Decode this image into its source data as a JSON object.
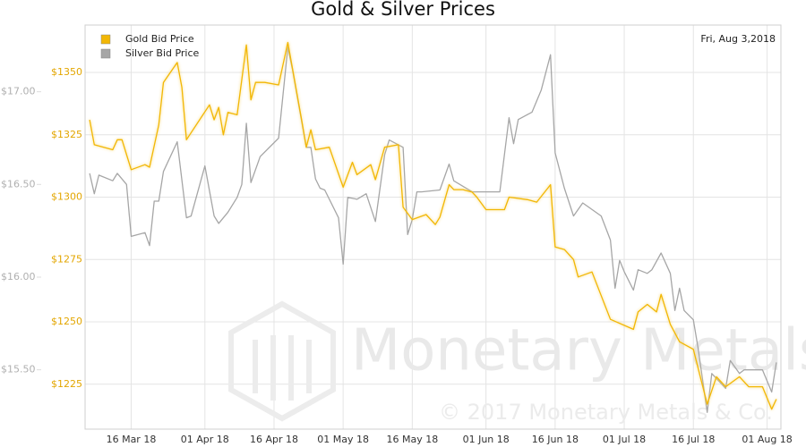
{
  "chart_data": {
    "type": "line",
    "title": "Gold & Silver Prices",
    "annotation": "Fri, Aug 3,2018",
    "watermark": "Monetary Metals",
    "copyright": "© 2017 Monetary Metals & Co.",
    "legend": "upper left",
    "grid": true,
    "xlim": [
      "2018-03-06",
      "2018-08-04"
    ],
    "xticks": [
      {
        "value": "2018-03-16",
        "label": "16 Mar 18"
      },
      {
        "value": "2018-04-01",
        "label": "01 Apr 18"
      },
      {
        "value": "2018-04-16",
        "label": "16 Apr 18"
      },
      {
        "value": "2018-05-01",
        "label": "01 May 18"
      },
      {
        "value": "2018-05-16",
        "label": "16 May 18"
      },
      {
        "value": "2018-06-01",
        "label": "01 Jun 18"
      },
      {
        "value": "2018-06-16",
        "label": "16 Jun 18"
      },
      {
        "value": "2018-07-01",
        "label": "01 Jul 18"
      },
      {
        "value": "2018-07-16",
        "label": "16 Jul 18"
      },
      {
        "value": "2018-08-01",
        "label": "01 Aug 18"
      }
    ],
    "ylim": [
      1207,
      1369
    ],
    "yticks": [
      {
        "value": 1225,
        "label": "$1225"
      },
      {
        "value": 1250,
        "label": "$1250"
      },
      {
        "value": 1275,
        "label": "$1275"
      },
      {
        "value": 1300,
        "label": "$1300"
      },
      {
        "value": 1325,
        "label": "$1325"
      },
      {
        "value": 1350,
        "label": "$1350"
      }
    ],
    "y2lim": [
      15.18,
      17.36
    ],
    "y2ticks": [
      {
        "value": 15.5,
        "label": "$15.50"
      },
      {
        "value": 16,
        "label": "$16.00"
      },
      {
        "value": 16.5,
        "label": "$16.50"
      },
      {
        "value": 17,
        "label": "$17.00"
      }
    ],
    "series": [
      {
        "name": "Gold Bid Price",
        "color": "#f2b705",
        "x": [
          "2018-03-07",
          "2018-03-08",
          "2018-03-12",
          "2018-03-13",
          "2018-03-14",
          "2018-03-16",
          "2018-03-19",
          "2018-03-20",
          "2018-03-22",
          "2018-03-23",
          "2018-03-26",
          "2018-03-27",
          "2018-03-28",
          "2018-04-02",
          "2018-04-03",
          "2018-04-04",
          "2018-04-05",
          "2018-04-06",
          "2018-04-08",
          "2018-04-10",
          "2018-04-11",
          "2018-04-12",
          "2018-04-14",
          "2018-04-17",
          "2018-04-19",
          "2018-04-22",
          "2018-04-23",
          "2018-04-24",
          "2018-04-25",
          "2018-04-28",
          "2018-05-01",
          "2018-05-03",
          "2018-05-04",
          "2018-05-07",
          "2018-05-08",
          "2018-05-10",
          "2018-05-13",
          "2018-05-14",
          "2018-05-16",
          "2018-05-19",
          "2018-05-21",
          "2018-05-22",
          "2018-05-24",
          "2018-05-25",
          "2018-05-27",
          "2018-05-29",
          "2018-05-30",
          "2018-06-01",
          "2018-06-05",
          "2018-06-06",
          "2018-06-10",
          "2018-06-12",
          "2018-06-15",
          "2018-06-16",
          "2018-06-18",
          "2018-06-20",
          "2018-06-21",
          "2018-06-24",
          "2018-06-28",
          "2018-07-03",
          "2018-07-04",
          "2018-07-06",
          "2018-07-08",
          "2018-07-09",
          "2018-07-11",
          "2018-07-13",
          "2018-07-16",
          "2018-07-19",
          "2018-07-21",
          "2018-07-23",
          "2018-07-26",
          "2018-07-28",
          "2018-07-31",
          "2018-08-02",
          "2018-08-03"
        ],
        "values": [
          1331,
          1321,
          1319,
          1323,
          1323,
          1311,
          1313,
          1312,
          1329,
          1346,
          1354,
          1344,
          1323,
          1337,
          1331,
          1336,
          1325,
          1334,
          1333,
          1361,
          1339,
          1346,
          1346,
          1345,
          1362,
          1331,
          1320,
          1327,
          1319,
          1320,
          1304,
          1314,
          1309,
          1313,
          1307,
          1320,
          1321,
          1296,
          1291,
          1293,
          1289,
          1292,
          1305,
          1303,
          1303,
          1302,
          1300,
          1295,
          1295,
          1300,
          1299,
          1298,
          1305,
          1280,
          1279,
          1275,
          1268,
          1270,
          1251,
          1247,
          1254,
          1257,
          1254,
          1261,
          1249,
          1242,
          1239,
          1217,
          1228,
          1224,
          1228,
          1224,
          1224,
          1215,
          1219
        ]
      },
      {
        "name": "Silver Bid Price",
        "color": "#a6a6a6",
        "axis": "y2",
        "x": [
          "2018-03-07",
          "2018-03-08",
          "2018-03-09",
          "2018-03-12",
          "2018-03-13",
          "2018-03-15",
          "2018-03-16",
          "2018-03-19",
          "2018-03-20",
          "2018-03-21",
          "2018-03-22",
          "2018-03-23",
          "2018-03-26",
          "2018-03-28",
          "2018-03-29",
          "2018-04-01",
          "2018-04-03",
          "2018-04-04",
          "2018-04-06",
          "2018-04-08",
          "2018-04-09",
          "2018-04-10",
          "2018-04-11",
          "2018-04-13",
          "2018-04-17",
          "2018-04-19",
          "2018-04-20",
          "2018-04-23",
          "2018-04-24",
          "2018-04-25",
          "2018-04-26",
          "2018-04-27",
          "2018-04-30",
          "2018-05-01",
          "2018-05-02",
          "2018-05-04",
          "2018-05-06",
          "2018-05-08",
          "2018-05-10",
          "2018-05-11",
          "2018-05-14",
          "2018-05-15",
          "2018-05-16",
          "2018-05-17",
          "2018-05-18",
          "2018-05-22",
          "2018-05-24",
          "2018-05-25",
          "2018-05-29",
          "2018-06-01",
          "2018-06-04",
          "2018-06-06",
          "2018-06-07",
          "2018-06-08",
          "2018-06-11",
          "2018-06-13",
          "2018-06-15",
          "2018-06-16",
          "2018-06-18",
          "2018-06-20",
          "2018-06-22",
          "2018-06-26",
          "2018-06-28",
          "2018-06-29",
          "2018-06-30",
          "2018-07-01",
          "2018-07-03",
          "2018-07-04",
          "2018-07-06",
          "2018-07-07",
          "2018-07-09",
          "2018-07-11",
          "2018-07-12",
          "2018-07-13",
          "2018-07-14",
          "2018-07-16",
          "2018-07-17",
          "2018-07-19",
          "2018-07-20",
          "2018-07-23",
          "2018-07-24",
          "2018-07-26",
          "2018-07-27",
          "2018-07-31",
          "2018-08-02",
          "2018-08-03"
        ],
        "values": [
          16.56,
          16.45,
          16.55,
          16.52,
          16.56,
          16.5,
          16.22,
          16.24,
          16.17,
          16.41,
          16.41,
          16.57,
          16.73,
          16.32,
          16.33,
          16.6,
          16.33,
          16.29,
          16.35,
          16.43,
          16.5,
          16.83,
          16.51,
          16.65,
          16.75,
          17.24,
          17.12,
          16.7,
          16.7,
          16.53,
          16.48,
          16.47,
          16.32,
          16.07,
          16.43,
          16.42,
          16.45,
          16.3,
          16.66,
          16.74,
          16.7,
          16.23,
          16.31,
          16.46,
          16.46,
          16.47,
          16.61,
          16.52,
          16.46,
          16.46,
          16.46,
          16.86,
          16.72,
          16.85,
          16.89,
          17.01,
          17.2,
          16.67,
          16.48,
          16.33,
          16.4,
          16.33,
          16.2,
          15.94,
          16.09,
          16.03,
          15.93,
          16.04,
          16.02,
          16.04,
          16.13,
          16.02,
          15.82,
          15.94,
          15.82,
          15.77,
          15.62,
          15.27,
          15.48,
          15.4,
          15.55,
          15.48,
          15.5,
          15.5,
          15.38,
          15.54
        ]
      }
    ]
  }
}
